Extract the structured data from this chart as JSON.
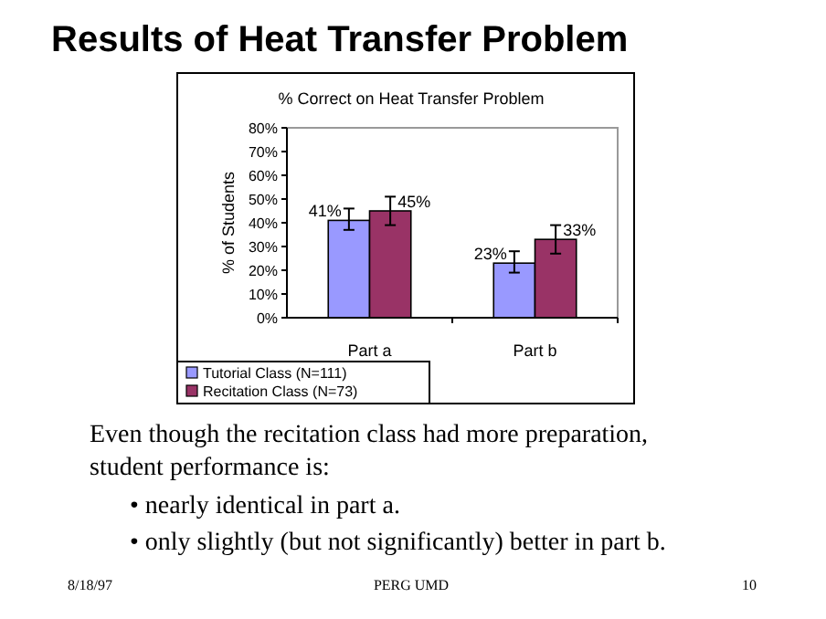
{
  "chart_data": {
    "type": "bar",
    "title": "Results of Heat Transfer Problem",
    "subtitle": "% Correct on Heat Transfer Problem",
    "ylabel": "% of Students",
    "categories": [
      "Part a",
      "Part b"
    ],
    "series": [
      {
        "name": "Tutorial Class (N=111)",
        "color": "#9999ff",
        "values": [
          41,
          23
        ],
        "errors": [
          [
            37,
            46
          ],
          [
            19,
            28
          ]
        ],
        "value_labels": [
          "41%",
          "23%"
        ]
      },
      {
        "name": "Recitation Class (N=73)",
        "color": "#993366",
        "values": [
          45,
          33
        ],
        "errors": [
          [
            39,
            51
          ],
          [
            27,
            39
          ]
        ],
        "value_labels": [
          "45%",
          "33%"
        ]
      }
    ],
    "ylim": [
      0,
      80
    ],
    "yticks": [
      {
        "value": 0,
        "label": "0%"
      },
      {
        "value": 10,
        "label": "10%"
      },
      {
        "value": 20,
        "label": "20%"
      },
      {
        "value": 30,
        "label": "30%"
      },
      {
        "value": 40,
        "label": "40%"
      },
      {
        "value": 50,
        "label": "50%"
      },
      {
        "value": 60,
        "label": "60%"
      },
      {
        "value": 70,
        "label": "70%"
      },
      {
        "value": 80,
        "label": "80%"
      }
    ],
    "grid": false,
    "legend": "bottom left",
    "annotations": [
      "Even though the recitation class had more preparation,",
      "student performance is:",
      "• nearly identical in part a.",
      "• only slightly (but not significantly) better in part b.",
      "8/18/97",
      "PERG UMD",
      "10"
    ]
  }
}
